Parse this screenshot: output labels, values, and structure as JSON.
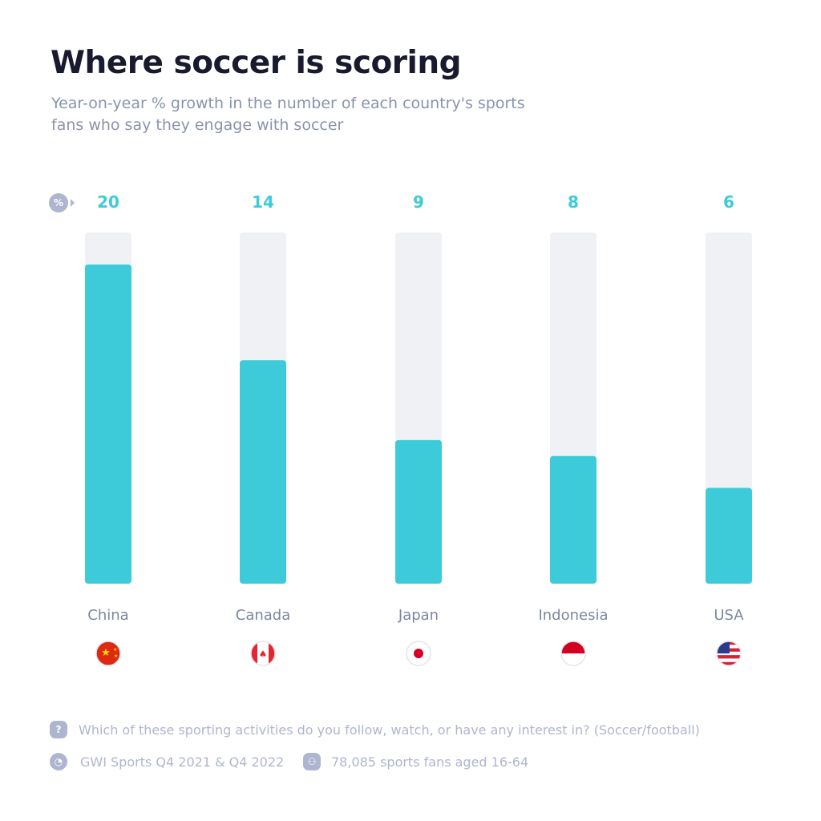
{
  "header": {
    "title": "Where soccer is scoring",
    "subtitle": "Year-on-year % growth in the number of each country's sports fans who say they engage with soccer"
  },
  "unit_badge": "%",
  "chart_data": {
    "type": "bar",
    "categories": [
      "China",
      "Canada",
      "Japan",
      "Indonesia",
      "USA"
    ],
    "values": [
      20,
      14,
      9,
      8,
      6
    ],
    "data_labels": [
      "20",
      "14",
      "9",
      "8",
      "6"
    ],
    "flags": [
      "china-flag-icon",
      "canada-flag-icon",
      "japan-flag-icon",
      "indonesia-flag-icon",
      "usa-flag-icon"
    ],
    "title": "Where soccer is scoring",
    "ylim": [
      0,
      22
    ],
    "grid": false,
    "colors": {
      "bar": "#3dcbda",
      "track": "#f0f1f5",
      "label": "#3dcbda"
    }
  },
  "footer": {
    "question": "Which of these sporting activities do you follow, watch, or have any interest in? (Soccer/football)",
    "source": "GWI Sports Q4 2021 & Q4 2022",
    "sample": "78,085 sports fans aged 16-64"
  }
}
